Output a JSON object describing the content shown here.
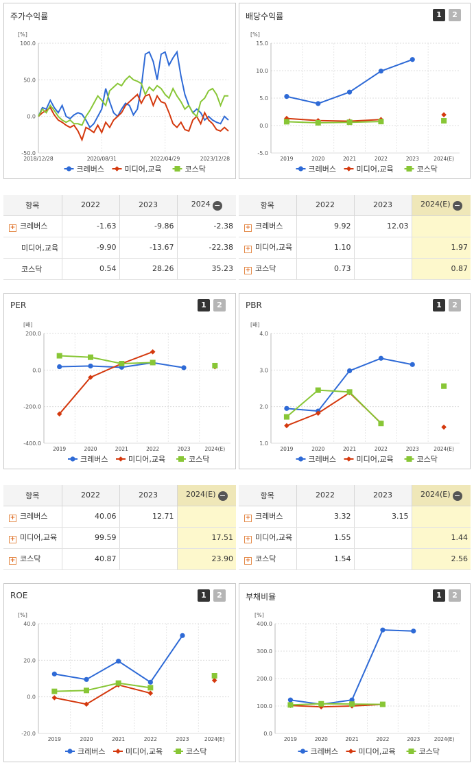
{
  "legend": [
    {
      "name": "크레버스",
      "color": "#2e6ad6",
      "marker": "circle"
    },
    {
      "name": "미디어,교육",
      "color": "#d4380d",
      "marker": "diamond"
    },
    {
      "name": "코스닥",
      "color": "#88c636",
      "marker": "square"
    }
  ],
  "pager": {
    "one": "1",
    "two": "2"
  },
  "icons": {
    "plus": "plus-icon",
    "minus": "minus-icon"
  },
  "chart_data": [
    {
      "id": "stock_return",
      "title": "주가수익률",
      "type": "line",
      "unit": "[%]",
      "ylim": [
        -50,
        100
      ],
      "yticks": [
        "100.0",
        "50.0",
        "0.0",
        "-50.0"
      ],
      "xticks": [
        "2018/12/28",
        "2020/08/31",
        "2022/04/29",
        "2023/12/28"
      ],
      "series": [
        {
          "name": "크레버스",
          "values": [
            0,
            12,
            10,
            22,
            12,
            5,
            15,
            0,
            -3,
            2,
            5,
            3,
            -5,
            -15,
            -10,
            0,
            10,
            38,
            20,
            5,
            0,
            10,
            18,
            15,
            2,
            10,
            40,
            85,
            88,
            75,
            50,
            85,
            88,
            70,
            80,
            88,
            55,
            30,
            15,
            5,
            10,
            5,
            -5,
            0,
            -5,
            -8,
            -10,
            0,
            -5
          ]
        },
        {
          "name": "미디어,교육",
          "values": [
            0,
            5,
            8,
            12,
            2,
            -5,
            -8,
            -12,
            -15,
            -12,
            -20,
            -32,
            -15,
            -18,
            -22,
            -12,
            -22,
            -8,
            -15,
            -5,
            0,
            5,
            15,
            20,
            25,
            30,
            18,
            28,
            30,
            15,
            28,
            20,
            18,
            5,
            -10,
            -15,
            -8,
            -18,
            -20,
            -5,
            0,
            -10,
            5,
            -5,
            -10,
            -18,
            -20,
            -15,
            -20
          ]
        },
        {
          "name": "코스닥",
          "values": [
            0,
            10,
            5,
            15,
            8,
            0,
            -5,
            -8,
            -5,
            -10,
            -10,
            -12,
            0,
            8,
            18,
            28,
            22,
            15,
            35,
            40,
            45,
            42,
            50,
            55,
            50,
            48,
            45,
            30,
            40,
            35,
            42,
            38,
            30,
            25,
            38,
            28,
            20,
            10,
            15,
            5,
            0,
            20,
            25,
            35,
            38,
            30,
            15,
            28,
            28
          ]
        }
      ]
    },
    {
      "id": "dividend_yield",
      "title": "배당수익률",
      "type": "line",
      "unit": "[%]",
      "ylim": [
        -5,
        15
      ],
      "yticks": [
        "15.0",
        "10.0",
        "5.0",
        "0.0",
        "-5.0"
      ],
      "categories": [
        "2019",
        "2020",
        "2021",
        "2022",
        "2023",
        "2024(E)"
      ],
      "series": [
        {
          "name": "크레버스",
          "values": [
            5.3,
            4.0,
            6.1,
            9.92,
            12.03,
            null
          ]
        },
        {
          "name": "미디어,교육",
          "values": [
            1.3,
            0.9,
            0.8,
            1.1,
            null,
            1.97
          ]
        },
        {
          "name": "코스닥",
          "values": [
            0.7,
            0.5,
            0.6,
            0.73,
            null,
            0.87
          ]
        }
      ]
    },
    {
      "id": "per",
      "title": "PER",
      "type": "line",
      "unit": "[배]",
      "ylim": [
        -400,
        200
      ],
      "yticks": [
        "200.0",
        "0.0",
        "-200.0",
        "-400.0"
      ],
      "categories": [
        "2019",
        "2020",
        "2021",
        "2022",
        "2023",
        "2024(E)"
      ],
      "series": [
        {
          "name": "크레버스",
          "values": [
            18,
            22,
            15,
            40.06,
            12.71,
            null
          ]
        },
        {
          "name": "미디어,교육",
          "values": [
            -240,
            -40,
            35,
            99.59,
            null,
            17.51
          ]
        },
        {
          "name": "코스닥",
          "values": [
            78,
            70,
            35,
            40.87,
            null,
            23.9
          ]
        }
      ]
    },
    {
      "id": "pbr",
      "title": "PBR",
      "type": "line",
      "unit": "[배]",
      "ylim": [
        1.0,
        4.0
      ],
      "yticks": [
        "4.0",
        "3.0",
        "2.0",
        "1.0"
      ],
      "categories": [
        "2019",
        "2020",
        "2021",
        "2022",
        "2023",
        "2024(E)"
      ],
      "series": [
        {
          "name": "크레버스",
          "values": [
            1.95,
            1.88,
            2.98,
            3.32,
            3.15,
            null
          ]
        },
        {
          "name": "미디어,교육",
          "values": [
            1.48,
            1.82,
            2.38,
            1.55,
            null,
            1.44
          ]
        },
        {
          "name": "코스닥",
          "values": [
            1.72,
            2.45,
            2.4,
            1.54,
            null,
            2.56
          ]
        }
      ]
    },
    {
      "id": "roe",
      "title": "ROE",
      "type": "line",
      "unit": "[%]",
      "ylim": [
        -20,
        40
      ],
      "yticks": [
        "40.0",
        "20.0",
        "0.0",
        "-20.0"
      ],
      "categories": [
        "2019",
        "2020",
        "2021",
        "2022",
        "2023",
        "2024(E)"
      ],
      "series": [
        {
          "name": "크레버스",
          "values": [
            12.5,
            9.5,
            19.5,
            8.0,
            33.5,
            null
          ]
        },
        {
          "name": "미디어,교육",
          "values": [
            -0.5,
            -4.0,
            6.5,
            2.0,
            null,
            9.0
          ]
        },
        {
          "name": "코스닥",
          "values": [
            3.0,
            3.5,
            7.5,
            5.0,
            null,
            11.5
          ]
        }
      ]
    },
    {
      "id": "debt_ratio",
      "title": "부채비율",
      "type": "line",
      "unit": "[%]",
      "ylim": [
        0,
        400
      ],
      "yticks": [
        "400.0",
        "300.0",
        "200.0",
        "100.0",
        "0.0"
      ],
      "categories": [
        "2019",
        "2020",
        "2021",
        "2022",
        "2023",
        "2024(E)"
      ],
      "series": [
        {
          "name": "크레버스",
          "values": [
            122,
            106,
            122,
            377,
            373,
            null
          ]
        },
        {
          "name": "미디어,교육",
          "values": [
            102,
            97,
            100,
            106,
            null,
            null
          ]
        },
        {
          "name": "코스닥",
          "values": [
            104,
            108,
            107,
            106,
            null,
            null
          ]
        }
      ]
    }
  ],
  "tables": {
    "stock_return": {
      "headers": [
        "항목",
        "2022",
        "2023",
        "2024"
      ],
      "rows": [
        {
          "name": "크레버스",
          "values": [
            "-1.63",
            "-9.86",
            "-2.38"
          ]
        },
        {
          "name": "미디어,교육",
          "values": [
            "-9.90",
            "-13.67",
            "-22.38"
          ]
        },
        {
          "name": "코스닥",
          "values": [
            "0.54",
            "28.26",
            "35.23"
          ]
        }
      ]
    },
    "dividend_yield": {
      "headers": [
        "항목",
        "2022",
        "2023",
        "2024(E)"
      ],
      "rows": [
        {
          "name": "크레버스",
          "values": [
            "9.92",
            "12.03",
            ""
          ]
        },
        {
          "name": "미디어,교육",
          "values": [
            "1.10",
            "",
            "1.97"
          ]
        },
        {
          "name": "코스닥",
          "values": [
            "0.73",
            "",
            "0.87"
          ]
        }
      ]
    },
    "per": {
      "headers": [
        "항목",
        "2022",
        "2023",
        "2024(E)"
      ],
      "rows": [
        {
          "name": "크레버스",
          "values": [
            "40.06",
            "12.71",
            ""
          ]
        },
        {
          "name": "미디어,교육",
          "values": [
            "99.59",
            "",
            "17.51"
          ]
        },
        {
          "name": "코스닥",
          "values": [
            "40.87",
            "",
            "23.90"
          ]
        }
      ]
    },
    "pbr": {
      "headers": [
        "항목",
        "2022",
        "2023",
        "2024(E)"
      ],
      "rows": [
        {
          "name": "크레버스",
          "values": [
            "3.32",
            "3.15",
            ""
          ]
        },
        {
          "name": "미디어,교육",
          "values": [
            "1.55",
            "",
            "1.44"
          ]
        },
        {
          "name": "코스닥",
          "values": [
            "1.54",
            "",
            "2.56"
          ]
        }
      ]
    }
  }
}
